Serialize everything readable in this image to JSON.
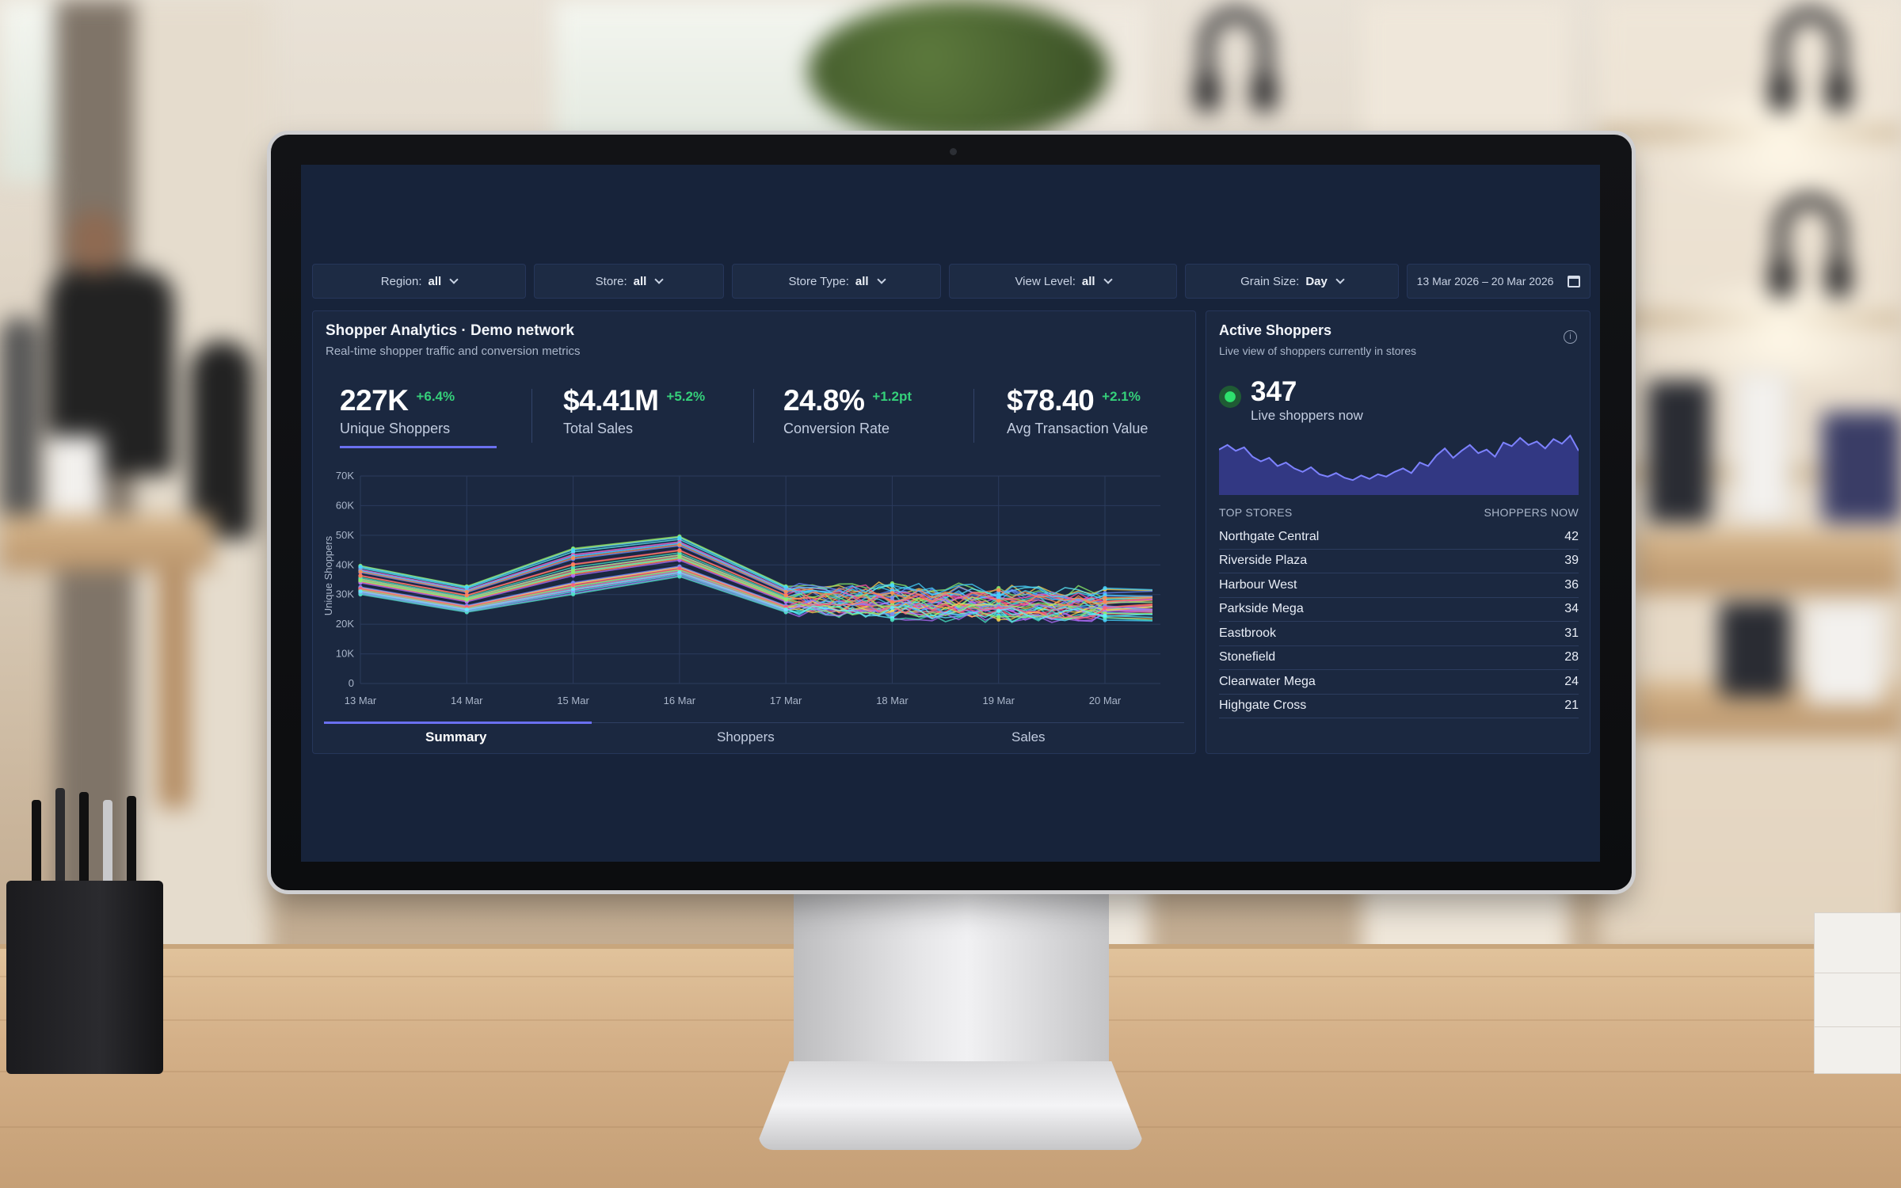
{
  "filters": [
    {
      "label": "Region:",
      "value": "all"
    },
    {
      "label": "Store:",
      "value": "all"
    },
    {
      "label": "Store Type:",
      "value": "all"
    },
    {
      "label": "View Level:",
      "value": "all"
    },
    {
      "label": "Grain Size:",
      "value": "Day"
    }
  ],
  "date_range": "13 Mar 2026 – 20 Mar 2026",
  "main": {
    "title": "Shopper Analytics · Demo network",
    "subtitle": "Real-time shopper traffic and conversion metrics",
    "kpis": [
      {
        "value": "227K",
        "delta": "+6.4%",
        "label": "Unique Shoppers"
      },
      {
        "value": "$4.41M",
        "delta": "+5.2%",
        "label": "Total Sales"
      },
      {
        "value": "24.8%",
        "delta": "+1.2pt",
        "label": "Conversion Rate"
      },
      {
        "value": "$78.40",
        "delta": "+2.1%",
        "label": "Avg Transaction Value"
      }
    ],
    "tabs": [
      "Summary",
      "Shoppers",
      "Sales"
    ],
    "active_tab": "Summary"
  },
  "chart_data": {
    "type": "line",
    "ylabel": "Unique Shoppers",
    "ylim": [
      0,
      70000
    ],
    "y_ticks": [
      "70K",
      "60K",
      "50K",
      "40K",
      "30K",
      "20K",
      "10K",
      "0"
    ],
    "x_ticks": [
      "13 Mar",
      "14 Mar",
      "15 Mar",
      "16 Mar",
      "17 Mar",
      "18 Mar",
      "19 Mar",
      "20 Mar"
    ],
    "grid": true,
    "series_count": 40,
    "note_band": {
      "x": [
        "13 Mar",
        "14 Mar",
        "15 Mar",
        "16 Mar",
        "17 Mar",
        "20 Mar"
      ],
      "low": [
        30000,
        24000,
        30000,
        36000,
        24000,
        22000
      ],
      "high": [
        40000,
        33000,
        46000,
        50000,
        33000,
        31000
      ]
    }
  },
  "side": {
    "title": "Active Shoppers",
    "subtitle": "Live view of shoppers currently in stores",
    "live_value": "347",
    "live_label": "Live shoppers now",
    "spark_values": [
      0.72,
      0.8,
      0.7,
      0.76,
      0.6,
      0.52,
      0.58,
      0.44,
      0.5,
      0.4,
      0.34,
      0.42,
      0.3,
      0.26,
      0.32,
      0.24,
      0.2,
      0.28,
      0.22,
      0.3,
      0.26,
      0.34,
      0.4,
      0.32,
      0.5,
      0.44,
      0.62,
      0.74,
      0.58,
      0.7,
      0.8,
      0.66,
      0.72,
      0.6,
      0.84,
      0.78,
      0.92,
      0.8,
      0.86,
      0.74,
      0.9,
      0.82,
      0.96,
      0.7
    ],
    "top_stores_label": "TOP STORES",
    "shoppers_now_label": "SHOPPERS NOW",
    "stores": [
      {
        "name": "Northgate Central",
        "count": "42"
      },
      {
        "name": "Riverside Plaza",
        "count": "39"
      },
      {
        "name": "Harbour West",
        "count": "36"
      },
      {
        "name": "Parkside Mega",
        "count": "34"
      },
      {
        "name": "Eastbrook",
        "count": "31"
      },
      {
        "name": "Stonefield",
        "count": "28"
      },
      {
        "name": "Clearwater Mega",
        "count": "24"
      },
      {
        "name": "Highgate Cross",
        "count": "21"
      }
    ]
  },
  "colors": {
    "accent": "#6a70f0",
    "positive": "#35d07a",
    "panel": "#1b2840",
    "screen": "#17233a"
  }
}
